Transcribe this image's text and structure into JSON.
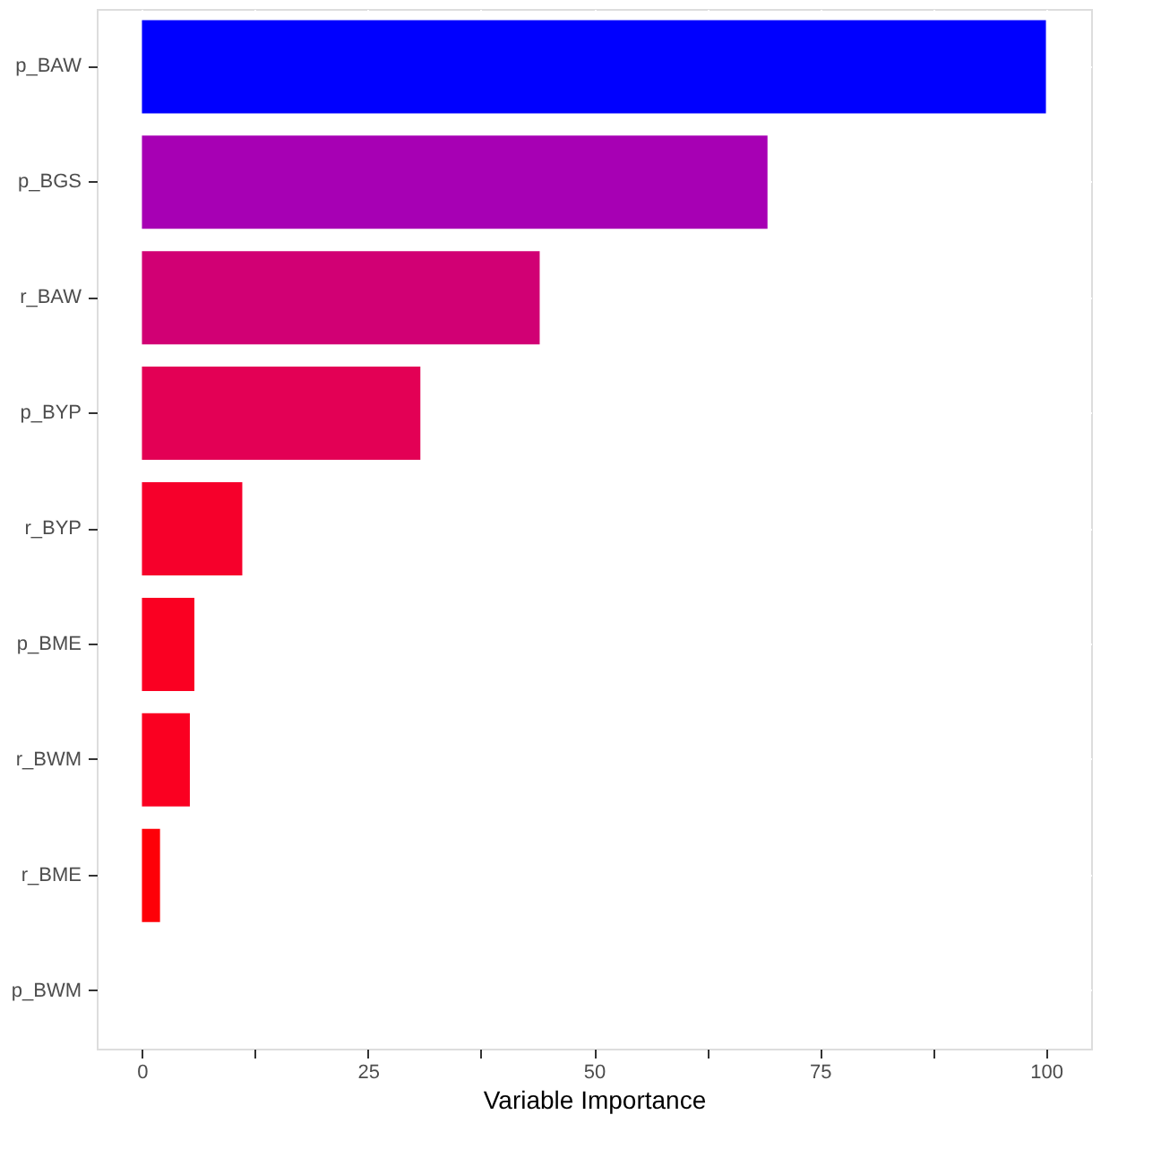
{
  "chart_data": {
    "type": "bar",
    "orientation": "horizontal",
    "xlabel": "Variable Importance",
    "categories": [
      "p_BAW",
      "p_BGS",
      "r_BAW",
      "p_BYP",
      "r_BYP",
      "p_BME",
      "r_BWM",
      "r_BME",
      "p_BWM"
    ],
    "values": [
      100,
      69.2,
      44.0,
      30.8,
      11.1,
      5.8,
      5.3,
      2.0,
      0
    ],
    "colors": [
      "#0000ff",
      "#a700b4",
      "#d10074",
      "#e30055",
      "#f6002b",
      "#fa0022",
      "#fa0021",
      "#fe0008",
      "#ff0000"
    ],
    "xlim": [
      -5,
      105
    ],
    "xticks": [
      0,
      {
        "value": 12.5,
        "label": null
      },
      25,
      {
        "value": 37.5,
        "label": null
      },
      50,
      {
        "value": 62.5,
        "label": null
      },
      75,
      {
        "value": 87.5,
        "label": null
      },
      100
    ],
    "grid": true
  }
}
